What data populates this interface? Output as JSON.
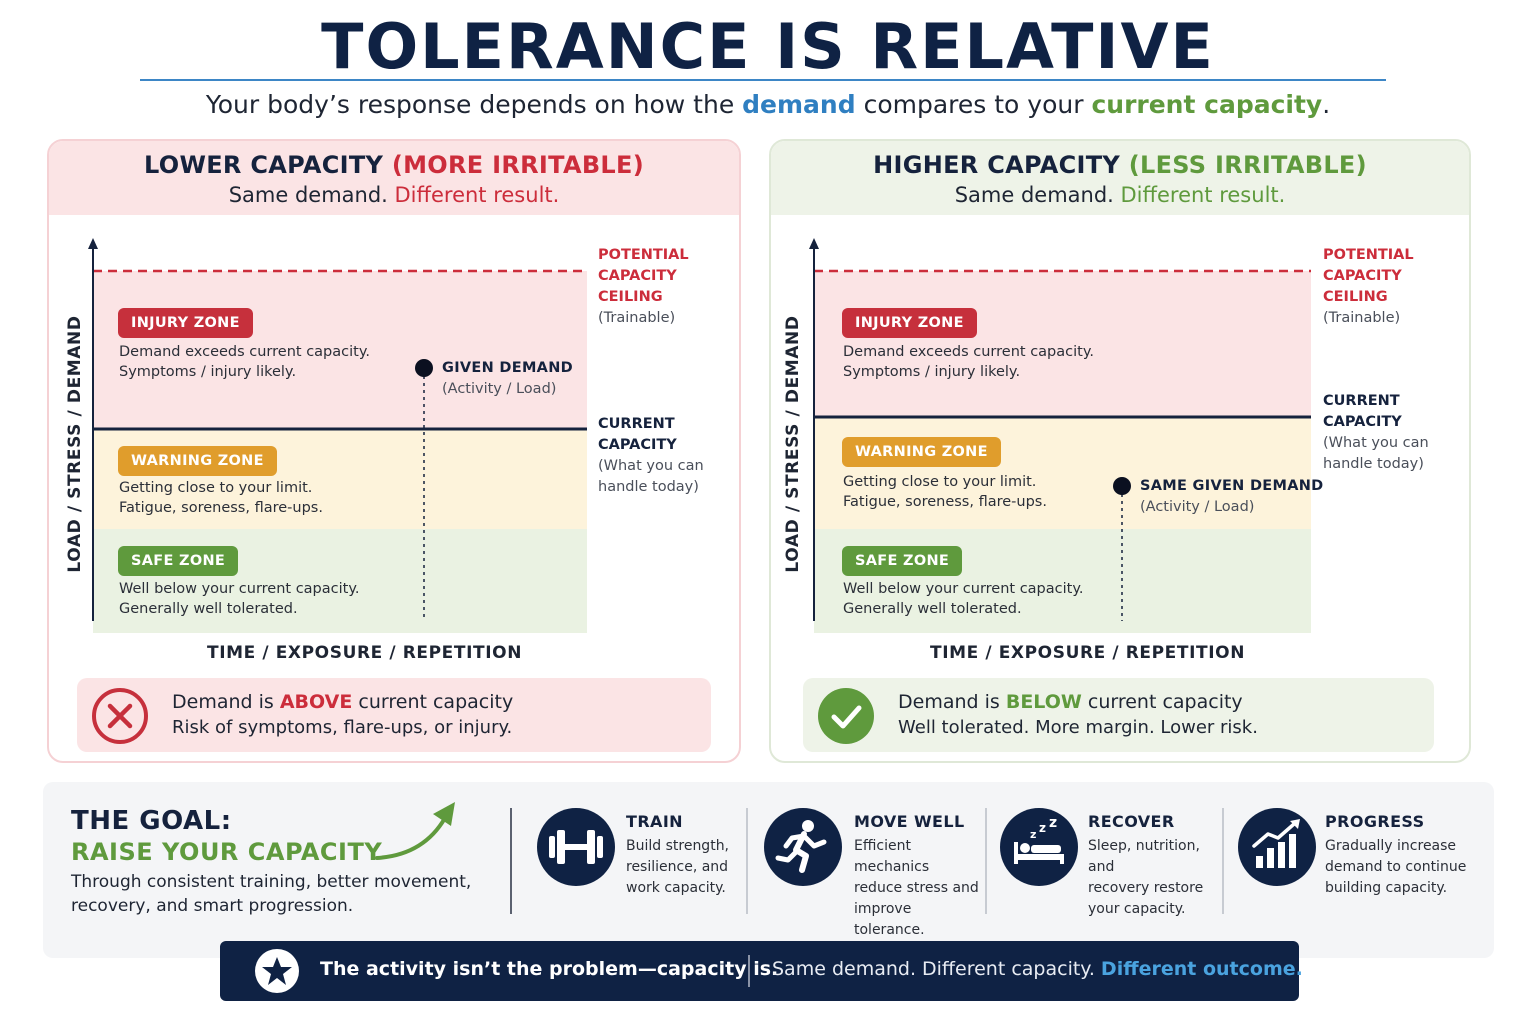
{
  "title": "TOLERANCE IS RELATIVE",
  "subtitle": {
    "prefix": "Your body’s response depends on how the ",
    "demand": "demand",
    "middle": " compares to your ",
    "capacity": "current capacity",
    "suffix": "."
  },
  "panels": {
    "left": {
      "title": "LOWER CAPACITY",
      "qualifier": "(MORE IRRITABLE)",
      "sub_plain": "Same demand.",
      "sub_accent": "Different result.",
      "zones": {
        "injury": {
          "label": "INJURY ZONE",
          "line1": "Demand exceeds current capacity.",
          "line2": "Symptoms / injury likely."
        },
        "warning": {
          "label": "WARNING ZONE",
          "line1": "Getting close to your limit.",
          "line2": "Fatigue, soreness, flare-ups."
        },
        "safe": {
          "label": "SAFE ZONE",
          "line1": "Well below your current capacity.",
          "line2": "Generally well tolerated."
        }
      },
      "ceiling": {
        "line1": "POTENTIAL",
        "line2": "CAPACITY CEILING",
        "line3": "(Trainable)"
      },
      "capacity": {
        "line1": "CURRENT",
        "line2": "CAPACITY",
        "line3": "(What you can",
        "line4": "handle today)"
      },
      "demand": {
        "title": "GIVEN DEMAND",
        "sub": "(Activity / Load)"
      },
      "y_axis": "LOAD / STRESS / DEMAND",
      "x_axis": "TIME / EXPOSURE / REPETITION",
      "verdict": {
        "pre": "Demand is ",
        "hl": "ABOVE",
        "post": " current capacity",
        "line2": "Risk of symptoms, flare-ups, or injury.",
        "icon": "x-circle-icon"
      }
    },
    "right": {
      "title": "HIGHER CAPACITY",
      "qualifier": "(LESS IRRITABLE)",
      "sub_plain": "Same demand.",
      "sub_accent": "Different result.",
      "zones": {
        "injury": {
          "label": "INJURY ZONE",
          "line1": "Demand exceeds current capacity.",
          "line2": "Symptoms / injury likely."
        },
        "warning": {
          "label": "WARNING ZONE",
          "line1": "Getting close to your limit.",
          "line2": "Fatigue, soreness, flare-ups."
        },
        "safe": {
          "label": "SAFE ZONE",
          "line1": "Well below your current capacity.",
          "line2": "Generally well tolerated."
        }
      },
      "ceiling": {
        "line1": "POTENTIAL",
        "line2": "CAPACITY CEILING",
        "line3": "(Trainable)"
      },
      "capacity": {
        "line1": "CURRENT",
        "line2": "CAPACITY",
        "line3": "(What you can",
        "line4": "handle today)"
      },
      "demand": {
        "title": "SAME GIVEN DEMAND",
        "sub": "(Activity / Load)"
      },
      "y_axis": "LOAD / STRESS / DEMAND",
      "x_axis": "TIME / EXPOSURE / REPETITION",
      "verdict": {
        "pre": "Demand is ",
        "hl": "BELOW",
        "post": " current capacity",
        "line2": "Well tolerated. More margin. Lower risk.",
        "icon": "check-circle-icon"
      }
    }
  },
  "goal": {
    "title": "THE GOAL:",
    "raise": "RAISE YOUR CAPACITY",
    "line1": "Through consistent training, better movement,",
    "line2": "recovery, and smart progression."
  },
  "features": [
    {
      "title": "TRAIN",
      "line1": "Build strength,",
      "line2": "resilience, and",
      "line3": "work capacity.",
      "icon": "dumbbell-icon"
    },
    {
      "title": "MOVE WELL",
      "line1": "Efficient mechanics",
      "line2": "reduce stress and",
      "line3": "improve tolerance.",
      "icon": "runner-icon"
    },
    {
      "title": "RECOVER",
      "line1": "Sleep, nutrition, and",
      "line2": "recovery restore",
      "line3": "your capacity.",
      "icon": "sleep-bed-icon"
    },
    {
      "title": "PROGRESS",
      "line1": "Gradually increase",
      "line2": "demand to continue",
      "line3": "building capacity.",
      "icon": "growth-chart-icon"
    }
  ],
  "banner": {
    "left": "The activity isn’t the problem—capacity is.",
    "right_plain": "Same demand. Different capacity. ",
    "right_hl": "Different outcome.",
    "icon": "star-icon"
  },
  "colors": {
    "navy": "#0f2244",
    "red": "#cc2d3b",
    "green": "#5f9a3d",
    "amber": "#e09d2c",
    "blue": "#2f7fc1"
  }
}
